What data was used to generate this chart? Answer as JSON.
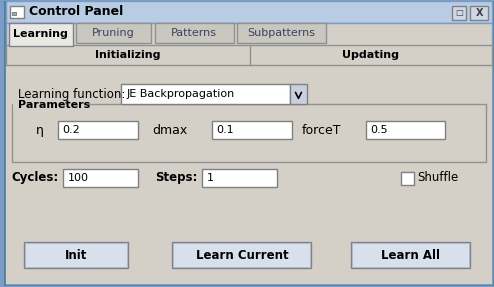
{
  "title": "Control Panel",
  "bg_color": "#d4d0c8",
  "tab_active": "Learning",
  "tabs": [
    "Learning",
    "Pruning",
    "Patterns",
    "Subpatterns"
  ],
  "sub_tabs": [
    "Initializing",
    "Updating"
  ],
  "learning_function_label": "Learning function:",
  "learning_function_value": "JE Backpropagation",
  "parameters_label": "Parameters",
  "param_labels": [
    "η",
    "dmax",
    "forceT"
  ],
  "param_values": [
    "0.2",
    "0.1",
    "0.5"
  ],
  "cycles_label": "Cycles:",
  "cycles_value": "100",
  "steps_label": "Steps:",
  "steps_value": "1",
  "shuffle_label": "Shuffle",
  "buttons": [
    "Init",
    "Learn Current",
    "Learn All"
  ],
  "border_color": "#7b9cc4",
  "input_bg": "#ffffff",
  "input_border": "#808080",
  "button_bg": "#d8e0ec",
  "button_border": "#a0a0a0"
}
